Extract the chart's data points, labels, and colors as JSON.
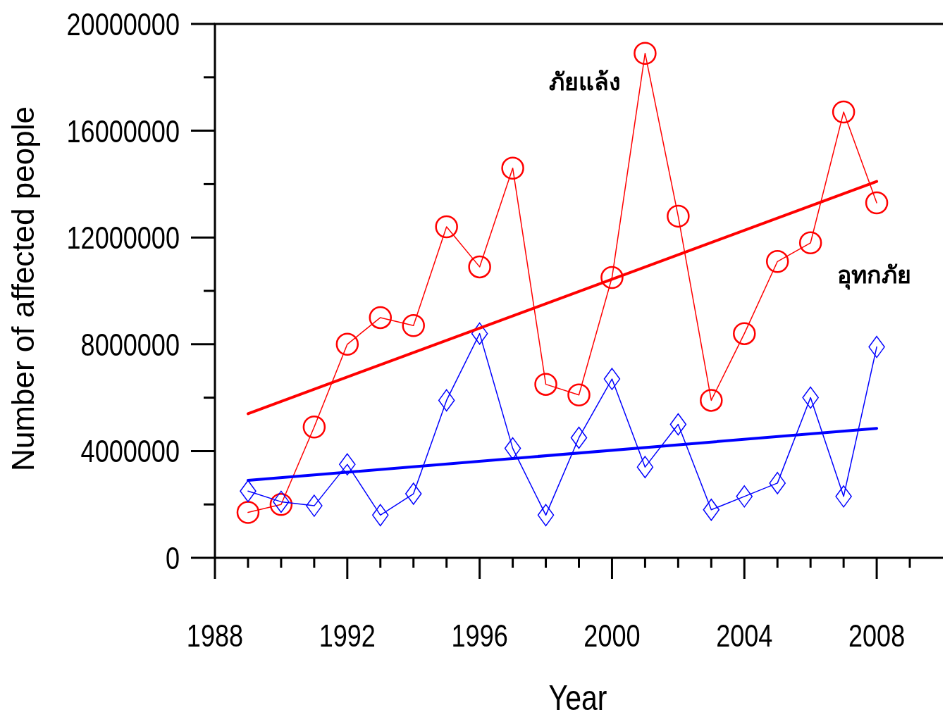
{
  "chart_data": {
    "type": "line",
    "xlabel": "Year",
    "ylabel": "Number of affected people",
    "x": [
      "1989",
      "1990",
      "1991",
      "1992",
      "1993",
      "1994",
      "1995",
      "1996",
      "1997",
      "1998",
      "1999",
      "2000",
      "2001",
      "2002",
      "2003",
      "2004",
      "2005",
      "2006",
      "2007",
      "2008"
    ],
    "series": [
      {
        "color": "#ff0000",
        "marker": "circle",
        "values": [
          1700000,
          2000000,
          4900000,
          8000000,
          9000000,
          8700000,
          12400000,
          10900000,
          14600000,
          6500000,
          6100000,
          10500000,
          18900000,
          12800000,
          5900000,
          8400000,
          11100000,
          11800000,
          16700000,
          13300000
        ]
      },
      {
        "color": "#0000ff",
        "marker": "diamond",
        "values": [
          2500000,
          2100000,
          1950000,
          3500000,
          1600000,
          2400000,
          5900000,
          8400000,
          4100000,
          1600000,
          4500000,
          6700000,
          3400000,
          5000000,
          1800000,
          2300000,
          2800000,
          6000000,
          2300000,
          7900000
        ]
      },
      {
        "type": "line",
        "color": "#ff0000",
        "marker": "none",
        "x": [
          "1989",
          "2008"
        ],
        "values": [
          5400000,
          14100000
        ]
      },
      {
        "type": "line",
        "color": "#0000ff",
        "marker": "none",
        "x": [
          "1989",
          "2008"
        ],
        "values": [
          2900000,
          4850000
        ]
      }
    ],
    "annotations": [
      "ภัยแล้ง",
      "อุทกภัย"
    ],
    "xlim": [
      "1988",
      "2010"
    ],
    "xticks": [
      {
        "value": "1988",
        "label": "1988"
      },
      {
        "value": "1989",
        "label": null
      },
      {
        "value": "1990",
        "label": null
      },
      {
        "value": "1991",
        "label": null
      },
      {
        "value": "1992",
        "label": "1992"
      },
      {
        "value": "1993",
        "label": null
      },
      {
        "value": "1994",
        "label": null
      },
      {
        "value": "1995",
        "label": null
      },
      {
        "value": "1996",
        "label": "1996"
      },
      {
        "value": "1997",
        "label": null
      },
      {
        "value": "1998",
        "label": null
      },
      {
        "value": "1999",
        "label": null
      },
      {
        "value": "2000",
        "label": "2000"
      },
      {
        "value": "2001",
        "label": null
      },
      {
        "value": "2002",
        "label": null
      },
      {
        "value": "2003",
        "label": null
      },
      {
        "value": "2004",
        "label": "2004"
      },
      {
        "value": "2005",
        "label": null
      },
      {
        "value": "2006",
        "label": null
      },
      {
        "value": "2007",
        "label": null
      },
      {
        "value": "2008",
        "label": "2008"
      },
      {
        "value": "2009",
        "label": null
      }
    ],
    "ylim": [
      0,
      20000000
    ],
    "yticks": [
      0,
      {
        "value": 2000000,
        "label": null
      },
      4000000,
      {
        "value": 6000000,
        "label": null
      },
      8000000,
      {
        "value": 10000000,
        "label": null
      },
      12000000,
      {
        "value": 14000000,
        "label": null
      },
      16000000,
      {
        "value": 18000000,
        "label": null
      },
      20000000
    ]
  }
}
